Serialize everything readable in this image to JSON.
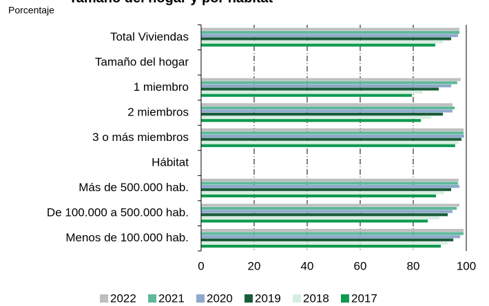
{
  "chart_data": {
    "type": "hbar",
    "title": "Tamaño del hogar y por hábitat",
    "subtitle": "Porcentaje",
    "categories": [
      "Total Viviendas",
      "Tamaño del hogar",
      "1 miembro",
      "2 miembros",
      "3 o más miembros",
      "Hábitat",
      "Más de 500.000 hab.",
      "De 100.000 a 500.000 hab.",
      "Menos de 100.000 hab."
    ],
    "series": [
      {
        "name": "2022",
        "color": "#bfbfbf",
        "values": [
          97.4,
          null,
          97.9,
          94.8,
          99.0,
          null,
          97.1,
          97.4,
          99.0
        ]
      },
      {
        "name": "2021",
        "color": "#5fb89a",
        "values": [
          97.4,
          null,
          96.6,
          95.6,
          99.0,
          null,
          96.9,
          96.4,
          99.0
        ]
      },
      {
        "name": "2020",
        "color": "#8fa8cc",
        "values": [
          96.9,
          null,
          94.3,
          94.8,
          99.2,
          null,
          97.4,
          94.8,
          97.7
        ]
      },
      {
        "name": "2019",
        "color": "#1a5c3a",
        "values": [
          94.3,
          null,
          89.6,
          91.2,
          98.2,
          null,
          94.3,
          93.0,
          95.1
        ]
      },
      {
        "name": "2018",
        "color": "#d6eee0",
        "values": [
          91.2,
          null,
          83.4,
          86.8,
          97.1,
          null,
          91.7,
          89.9,
          93.0
        ]
      },
      {
        "name": "2017",
        "color": "#0f9a50",
        "values": [
          88.3,
          null,
          79.5,
          82.9,
          95.8,
          null,
          88.6,
          85.5,
          90.4
        ]
      }
    ],
    "xlim": [
      0,
      100
    ],
    "xticks": [
      0,
      20,
      40,
      60,
      80,
      100
    ],
    "grid": true,
    "legend": "bottom"
  }
}
